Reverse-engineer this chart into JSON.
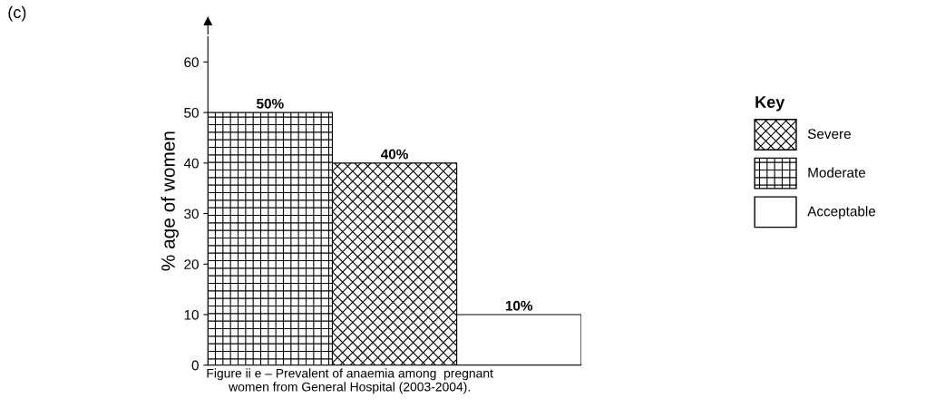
{
  "chart_data": {
    "type": "bar",
    "categories": [
      null,
      null,
      null
    ],
    "ylabel": "% age of women",
    "ylim": [
      0,
      65
    ],
    "yticks": [
      0,
      10,
      20,
      30,
      40,
      50,
      60
    ],
    "legend": "right",
    "legend_title": "Key",
    "tick_labels": "y",
    "grid": false,
    "series": [
      {
        "name": "Severe",
        "color": "#000000",
        "values": [
          null,
          40,
          null
        ],
        "value_labels": [
          null,
          "40%",
          null
        ]
      },
      {
        "name": "Moderate",
        "color": "#000000",
        "values": [
          50,
          null,
          null
        ],
        "value_labels": [
          "50%",
          null,
          null
        ]
      },
      {
        "name": "Acceptable",
        "color": "#ffffff",
        "values": [
          null,
          null,
          10
        ],
        "value_labels": [
          null,
          null,
          "10%"
        ]
      }
    ],
    "annotations": [
      "(c)",
      "Figure ii e – Prevalent of anaemia among  pregnant\nwomen from General Hospital (2003-2004)."
    ]
  }
}
